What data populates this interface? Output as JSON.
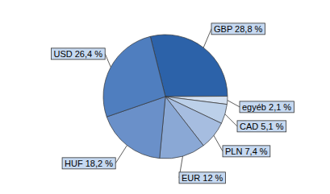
{
  "chart_data": {
    "type": "pie",
    "categories": [
      "GBP",
      "egyéb",
      "CAD",
      "PLN",
      "EUR",
      "HUF",
      "USD"
    ],
    "values": [
      28.8,
      2.1,
      5.1,
      7.4,
      12,
      18.2,
      26.4
    ],
    "value_labels": [
      "GBP 28,8 %",
      "egyéb 2,1 %",
      "CAD 5,1 %",
      "PLN 7,4 %",
      "EUR 12 %",
      "HUF 18,2 %",
      "USD 26,4 %"
    ],
    "colors": [
      "#2c62a9",
      "#d3e0f1",
      "#bcd0e9",
      "#a6bde0",
      "#8aa8d5",
      "#6a90c9",
      "#4f7ebf"
    ],
    "data_labels": true
  }
}
